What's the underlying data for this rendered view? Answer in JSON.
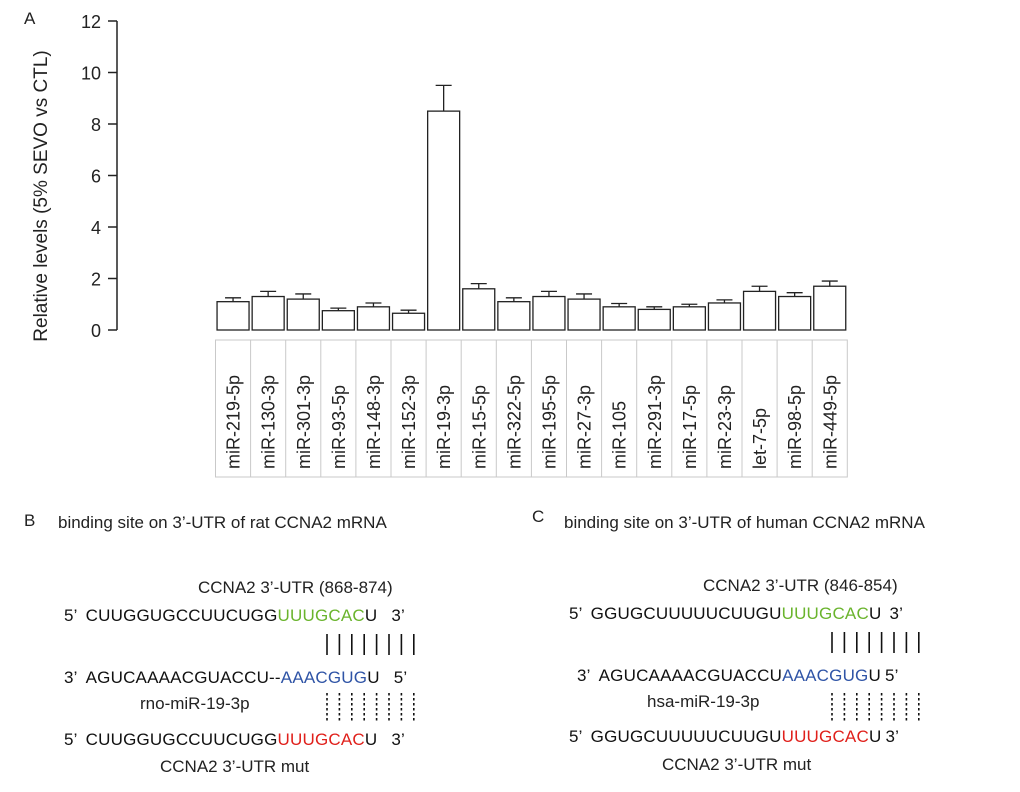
{
  "panel_a_label": "A",
  "chart_data": {
    "type": "bar",
    "ylabel": "Relative levels (5% SEVO vs CTL)",
    "ylim": [
      0,
      12
    ],
    "yticks": [
      0,
      2,
      4,
      6,
      8,
      10,
      12
    ],
    "grid": false,
    "categories": [
      "miR-219-5p",
      "miR-130-3p",
      "miR-301-3p",
      "miR-93-5p",
      "miR-148-3p",
      "miR-152-3p",
      "miR-19-3p",
      "miR-15-5p",
      "miR-322-5p",
      "miR-195-5p",
      "miR-27-3p",
      "miR-105",
      "miR-291-3p",
      "miR-17-5p",
      "miR-23-3p",
      "let-7-5p",
      "miR-98-5p",
      "miR-449-5p"
    ],
    "values": [
      1.1,
      1.3,
      1.2,
      0.75,
      0.9,
      0.65,
      8.5,
      1.6,
      1.1,
      1.3,
      1.2,
      0.9,
      0.8,
      0.9,
      1.05,
      1.5,
      1.3,
      1.7
    ],
    "errors": [
      0.15,
      0.2,
      0.2,
      0.1,
      0.15,
      0.12,
      1.0,
      0.2,
      0.15,
      0.2,
      0.2,
      0.13,
      0.1,
      0.1,
      0.12,
      0.2,
      0.15,
      0.2
    ]
  },
  "panel_b": {
    "label": "B",
    "title": "binding site on 3’-UTR of rat CCNA2 mRNA",
    "utr_label": "CCNA2 3’-UTR (868-874)",
    "row1": {
      "prefix": "5’",
      "seq": "CUUGGUGCCUUCUGG",
      "site": "UUUGCAC",
      "tail": "U",
      "suffix": "3’"
    },
    "row2": {
      "prefix": "3’",
      "seq": "AGUCAAAACGUACCU--",
      "site": "AAACGUG",
      "tail": "U",
      "suffix": "5’"
    },
    "mirna_label": "rno-miR-19-3p",
    "row3": {
      "prefix": "5’",
      "seq": "CUUGGUGCCUUCUGG",
      "site": "UUUGCAC",
      "tail": "U",
      "suffix": "3’"
    },
    "mut_label": "CCNA2 3’-UTR mut"
  },
  "panel_c": {
    "label": "C",
    "title": "binding site on 3’-UTR of human CCNA2 mRNA",
    "utr_label": "CCNA2 3’-UTR (846-854)",
    "row1": {
      "prefix": "5’",
      "seq": "GGUGCUUUUUCUUGU",
      "site": "UUUGCAC",
      "tail": "U",
      "suffix": "3’"
    },
    "row2": {
      "prefix": "3’",
      "seq": "AGUCAAAACGUACCU",
      "site": "AAACGUG",
      "tail": "U",
      "suffix": "5’"
    },
    "mirna_label": "hsa-miR-19-3p",
    "row3": {
      "prefix": "5’",
      "seq": "GGUGCUUUUUCUUGU",
      "site": "UUUGCAC",
      "tail": "U",
      "suffix": "3’"
    },
    "mut_label": "CCNA2 3’-UTR mut"
  },
  "colors": {
    "wild_site": "#6ab42d",
    "mirna_seed": "#2f54a6",
    "mut_site": "#e0201b",
    "axis": "#222222"
  }
}
